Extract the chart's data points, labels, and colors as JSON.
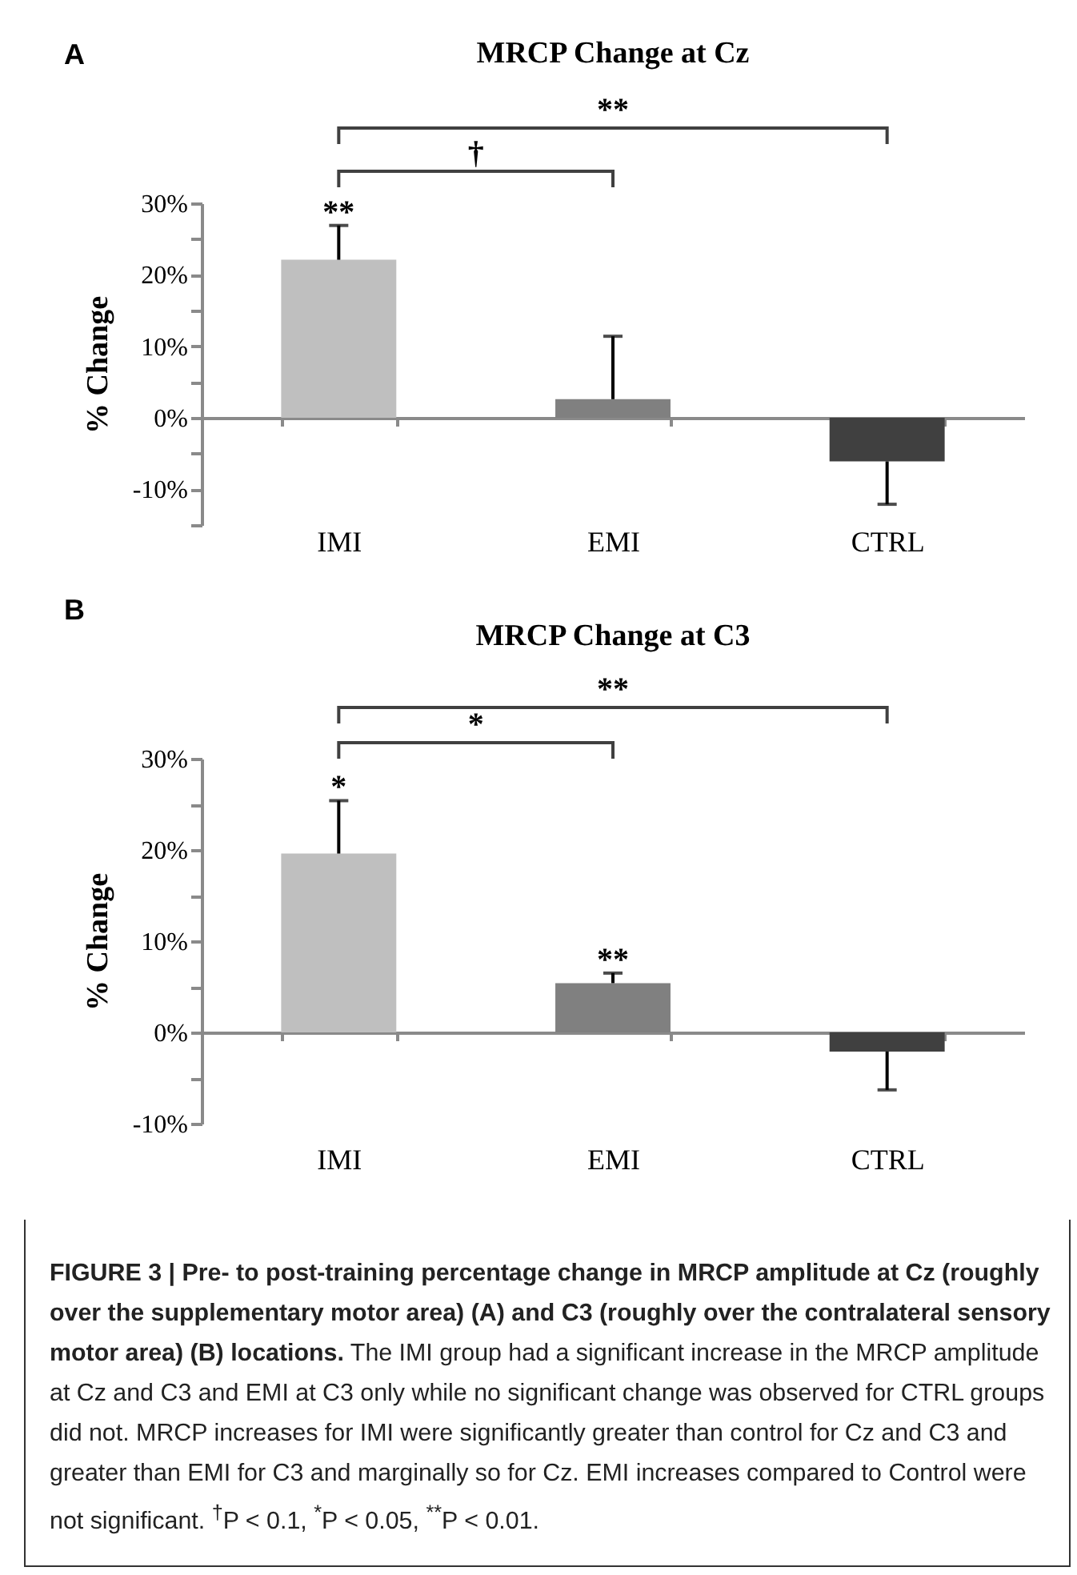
{
  "chart_data": [
    {
      "type": "bar",
      "title": "MRCP Change at Cz",
      "ylabel": "% Change",
      "categories": [
        "IMI",
        "EMI",
        "CTRL"
      ],
      "values": [
        22.1,
        2.6,
        -6.1
      ],
      "colors": [
        "#bfbfbf",
        "#808080",
        "#404040"
      ],
      "errors": [
        [
          22.1,
          26.9
        ],
        [
          2.6,
          11.4
        ],
        [
          -12.1,
          -6.1
        ]
      ],
      "ylim": [
        -15,
        30
      ],
      "yticks": [
        {
          "value": -15,
          "label": null
        },
        {
          "value": -10,
          "label": "-10%"
        },
        {
          "value": -5,
          "label": null
        },
        {
          "value": 0,
          "label": "0%"
        },
        {
          "value": 5,
          "label": null
        },
        {
          "value": 10,
          "label": "10%"
        },
        {
          "value": 15,
          "label": null
        },
        {
          "value": 20,
          "label": "20%"
        },
        {
          "value": 25,
          "label": null
        },
        {
          "value": 30,
          "label": "30%"
        }
      ],
      "annotations": [
        "A",
        "**",
        "†",
        {
          "text": "**",
          "x": "IMI",
          "y": 22.1
        }
      ]
    },
    {
      "type": "bar",
      "title": "MRCP Change at C3",
      "ylabel": "% Change",
      "categories": [
        "IMI",
        "EMI",
        "CTRL"
      ],
      "values": [
        19.6,
        5.4,
        -2.1
      ],
      "colors": [
        "#bfbfbf",
        "#808080",
        "#404040"
      ],
      "errors": [
        [
          19.6,
          25.4
        ],
        [
          5.4,
          6.5
        ],
        [
          -6.3,
          -2.1
        ]
      ],
      "ylim": [
        -10,
        30
      ],
      "yticks": [
        {
          "value": -10,
          "label": "-10%"
        },
        {
          "value": -5,
          "label": null
        },
        {
          "value": 0,
          "label": "0%"
        },
        {
          "value": 5,
          "label": null
        },
        {
          "value": 10,
          "label": "10%"
        },
        {
          "value": 15,
          "label": null
        },
        {
          "value": 20,
          "label": "20%"
        },
        {
          "value": 25,
          "label": null
        },
        {
          "value": 30,
          "label": "30%"
        }
      ],
      "annotations": [
        "B",
        "**",
        "*",
        {
          "text": "*",
          "x": "IMI",
          "y": 19.6
        },
        {
          "text": "**",
          "x": "EMI",
          "y": 5.4
        }
      ]
    },
    {
      "type": "other",
      "title": "FIGURE 3 | Pre- to post-training percentage change in MRCP amplitude at Cz (roughly over the supplementary motor area) (A) and C3 (roughly over the contralateral sensory motor area) (B) locations.",
      "annotations": [
        "The IMI group had a significant increase in the MRCP amplitude at Cz and C3 and EMI at C3 only while no significant change was observed for CTRL groups did not. MRCP increases for IMI were significantly greater than control for Cz and C3 and greater than EMI for C3 and marginally so for Cz. EMI increases compared to Control were not significant. $^{†}$P < 0.1, $^{*}$P < 0.05, $^{**}$P < 0.01."
      ]
    }
  ]
}
